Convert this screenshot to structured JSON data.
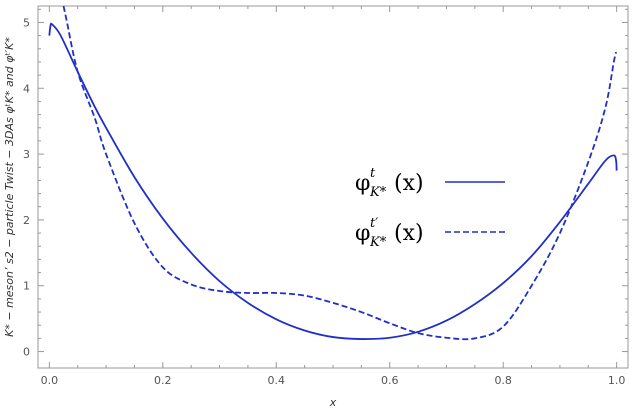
{
  "chart_data": {
    "type": "line",
    "xlabel": "x",
    "ylabel": "K* − meson’ s2 − particle Twist − 3DAs φᵗK* and φᵗ′K*",
    "xlim": [
      -0.02,
      1.02
    ],
    "ylim": [
      -0.25,
      5.25
    ],
    "x_ticks": [
      0.0,
      0.2,
      0.4,
      0.6,
      0.8,
      1.0
    ],
    "x_tick_labels": [
      "0.0",
      "0.2",
      "0.4",
      "0.6",
      "0.8",
      "1.0"
    ],
    "y_ticks": [
      0,
      1,
      2,
      3,
      4,
      5
    ],
    "y_tick_labels": [
      "0",
      "1",
      "2",
      "3",
      "4",
      "5"
    ],
    "grid": false,
    "legend_position": "right",
    "legend": [
      {
        "symbol": "φ",
        "sup": "t",
        "sub": "K*",
        "arg": "(x)",
        "style": "solid"
      },
      {
        "symbol": "φ",
        "sup": "t′",
        "sub": "K*",
        "arg": "(x)",
        "style": "dashed"
      }
    ],
    "series": [
      {
        "style": "solid",
        "color": "#1f2fc8",
        "x": [
          0.0,
          0.002,
          0.005,
          0.02,
          0.05,
          0.08,
          0.1,
          0.15,
          0.2,
          0.25,
          0.3,
          0.35,
          0.4,
          0.45,
          0.5,
          0.55,
          0.6,
          0.65,
          0.7,
          0.75,
          0.8,
          0.85,
          0.9,
          0.95,
          0.98,
          0.995,
          0.999,
          1.0
        ],
        "y": [
          4.8,
          4.95,
          4.97,
          4.8,
          4.25,
          3.72,
          3.4,
          2.65,
          2.02,
          1.5,
          1.07,
          0.74,
          0.49,
          0.32,
          0.22,
          0.19,
          0.21,
          0.3,
          0.47,
          0.72,
          1.04,
          1.45,
          1.97,
          2.55,
          2.9,
          2.98,
          2.9,
          2.75
        ]
      },
      {
        "style": "dashed",
        "color": "#1f2fc8",
        "x": [
          0.025,
          0.03,
          0.05,
          0.08,
          0.1,
          0.15,
          0.2,
          0.25,
          0.3,
          0.35,
          0.4,
          0.45,
          0.5,
          0.55,
          0.6,
          0.65,
          0.7,
          0.75,
          0.8,
          0.85,
          0.9,
          0.95,
          0.98,
          0.995,
          0.999
        ],
        "y": [
          5.25,
          5.05,
          4.25,
          3.55,
          3.0,
          1.95,
          1.28,
          1.02,
          0.92,
          0.89,
          0.89,
          0.85,
          0.74,
          0.6,
          0.43,
          0.28,
          0.21,
          0.2,
          0.38,
          1.0,
          1.8,
          2.88,
          3.7,
          4.4,
          4.55
        ]
      }
    ]
  }
}
